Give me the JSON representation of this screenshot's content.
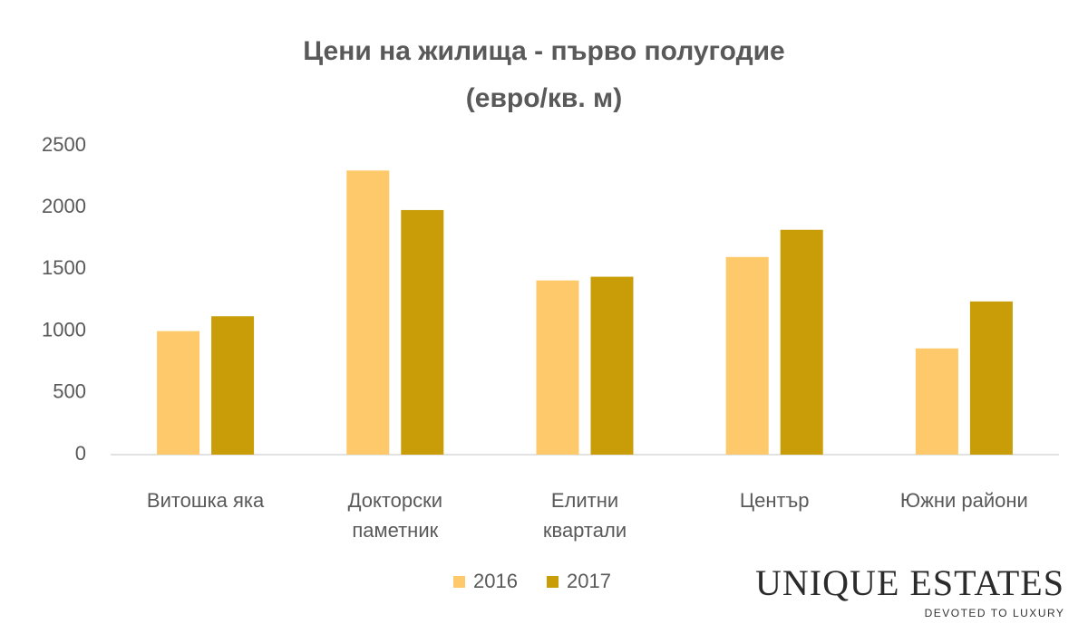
{
  "chart_data": {
    "type": "bar",
    "title": "Цени на жилища - първо полугодие",
    "subtitle": "(евро/кв. м)",
    "categories": [
      "Витошка яка",
      "Докторски\nпаметник",
      "Елитни\nквартали",
      "Център",
      "Южни райони"
    ],
    "series": [
      {
        "name": "2016",
        "color": "#fdc96a",
        "values": [
          1000,
          2300,
          1410,
          1600,
          860
        ]
      },
      {
        "name": "2017",
        "color": "#c89d08",
        "values": [
          1120,
          1980,
          1440,
          1820,
          1240
        ]
      }
    ],
    "ylim": [
      0,
      2500
    ],
    "yticks": [
      0,
      500,
      1000,
      1500,
      2000,
      2500
    ],
    "grid": false,
    "legend": "bottom"
  },
  "logo": {
    "name": "UNIQUE ESTATES",
    "tagline": "DEVOTED TO LUXURY"
  }
}
